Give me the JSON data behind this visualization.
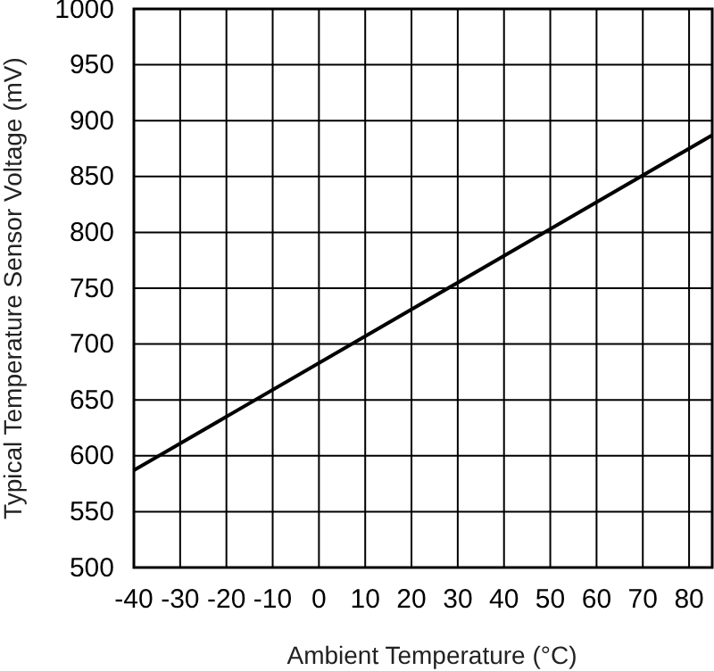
{
  "chart_data": {
    "type": "line",
    "xlabel": "Ambient Temperature (°C)",
    "ylabel": "Typical Temperature Sensor Voltage (mV)",
    "x": [
      -40,
      85
    ],
    "series": [
      {
        "color": "#000000",
        "values": [
          587,
          887
        ]
      }
    ],
    "xlim": [
      -40,
      85
    ],
    "xticks": [
      -40,
      -30,
      -20,
      -10,
      0,
      10,
      20,
      30,
      40,
      50,
      60,
      70,
      80
    ],
    "ylim": [
      500,
      1000
    ],
    "yticks": [
      500,
      550,
      600,
      650,
      700,
      750,
      800,
      850,
      900,
      950,
      1000
    ],
    "grid": true
  }
}
